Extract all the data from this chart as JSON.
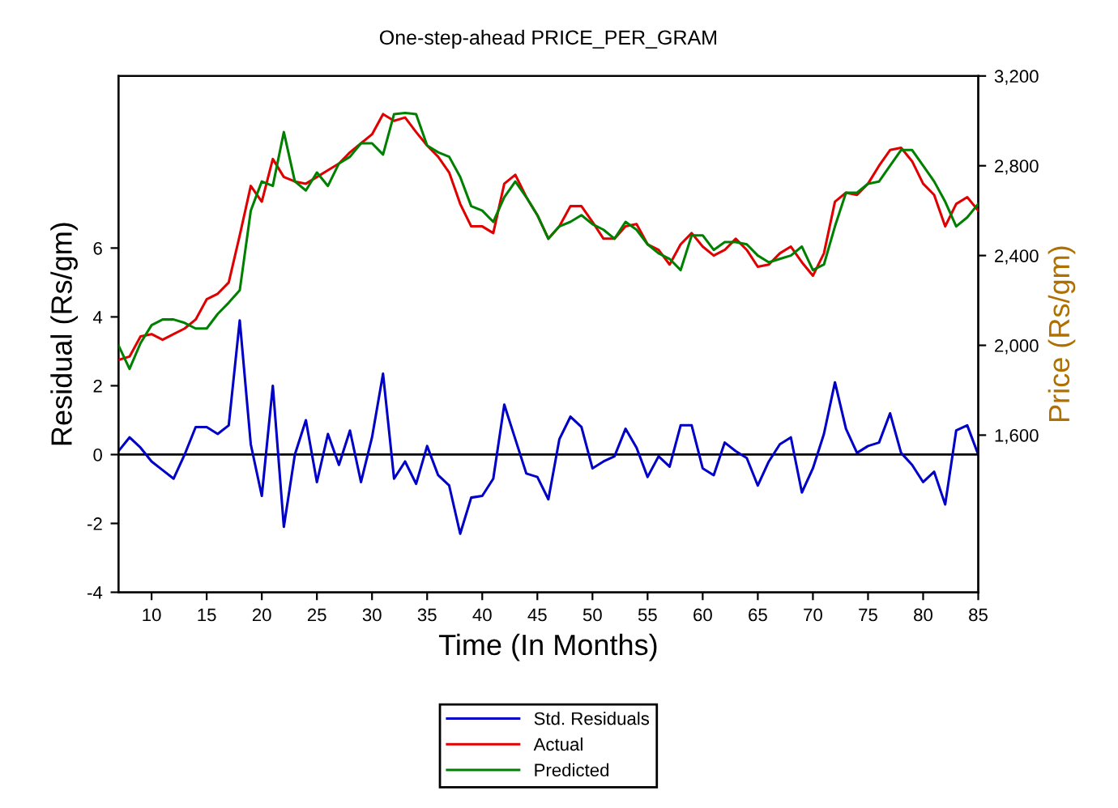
{
  "chart_data": {
    "type": "line",
    "title": "One-step-ahead PRICE_PER_GRAM",
    "xlabel": "Time (In Months)",
    "ylabel": "Residual (Rs/gm)",
    "y2label": "Price (Rs/gm)",
    "x": [
      7,
      8,
      9,
      10,
      11,
      12,
      13,
      14,
      15,
      16,
      17,
      18,
      19,
      20,
      21,
      22,
      23,
      24,
      25,
      26,
      27,
      28,
      29,
      30,
      31,
      32,
      33,
      34,
      35,
      36,
      37,
      38,
      39,
      40,
      41,
      42,
      43,
      44,
      45,
      46,
      47,
      48,
      49,
      50,
      51,
      52,
      53,
      54,
      55,
      56,
      57,
      58,
      59,
      60,
      61,
      62,
      63,
      64,
      65,
      66,
      67,
      68,
      69,
      70,
      71,
      72,
      73,
      74,
      75,
      76,
      77,
      78,
      79,
      80,
      81,
      82,
      83,
      84,
      85
    ],
    "series": [
      {
        "name": "Std. Residuals",
        "color": "#0000c8",
        "values": [
          0.1,
          0.5,
          0.2,
          -0.2,
          -0.45,
          -0.7,
          0.0,
          0.8,
          0.8,
          0.6,
          0.85,
          3.9,
          0.3,
          -1.2,
          2.0,
          -2.1,
          0.0,
          1.0,
          -0.8,
          0.6,
          -0.3,
          0.7,
          -0.8,
          0.5,
          2.35,
          -0.7,
          -0.2,
          -0.85,
          0.25,
          -0.6,
          -0.9,
          -2.3,
          -1.25,
          -1.2,
          -0.7,
          1.45,
          0.45,
          -0.55,
          -0.65,
          -1.3,
          0.45,
          1.1,
          0.8,
          -0.4,
          -0.2,
          -0.05,
          0.75,
          0.2,
          -0.65,
          -0.05,
          -0.35,
          0.85,
          0.85,
          -0.4,
          -0.6,
          0.35,
          0.1,
          -0.1,
          -0.9,
          -0.2,
          0.3,
          0.5,
          -1.1,
          -0.4,
          0.6,
          2.1,
          0.75,
          0.05,
          0.25,
          0.35,
          1.2,
          0.05,
          -0.3,
          -0.8,
          -0.5,
          -1.45,
          0.7,
          0.85,
          0.0
        ]
      },
      {
        "name": "Actual",
        "color": "#e00000",
        "axis": "y2",
        "values": [
          1935,
          1950,
          2040,
          2050,
          2025,
          2050,
          2075,
          2115,
          2205,
          2230,
          2280,
          2490,
          2710,
          2640,
          2830,
          2750,
          2730,
          2720,
          2750,
          2780,
          2810,
          2860,
          2900,
          2940,
          3030,
          3000,
          3015,
          2950,
          2890,
          2840,
          2770,
          2630,
          2530,
          2530,
          2500,
          2720,
          2760,
          2660,
          2580,
          2475,
          2530,
          2620,
          2620,
          2550,
          2475,
          2475,
          2530,
          2540,
          2450,
          2425,
          2360,
          2450,
          2500,
          2440,
          2400,
          2425,
          2475,
          2425,
          2350,
          2360,
          2410,
          2440,
          2370,
          2310,
          2410,
          2640,
          2680,
          2670,
          2720,
          2800,
          2870,
          2880,
          2820,
          2720,
          2670,
          2530,
          2630,
          2660,
          2600
        ]
      },
      {
        "name": "Predicted",
        "color": "#008000",
        "axis": "y2",
        "values": [
          2000,
          1895,
          2010,
          2090,
          2115,
          2115,
          2100,
          2075,
          2075,
          2140,
          2190,
          2245,
          2600,
          2730,
          2710,
          2950,
          2730,
          2690,
          2770,
          2710,
          2810,
          2840,
          2900,
          2900,
          2850,
          3030,
          3035,
          3030,
          2890,
          2860,
          2840,
          2750,
          2620,
          2600,
          2550,
          2660,
          2730,
          2660,
          2580,
          2475,
          2530,
          2550,
          2580,
          2540,
          2515,
          2475,
          2550,
          2515,
          2450,
          2410,
          2385,
          2335,
          2490,
          2490,
          2425,
          2460,
          2460,
          2450,
          2400,
          2370,
          2385,
          2400,
          2440,
          2335,
          2360,
          2530,
          2680,
          2680,
          2720,
          2730,
          2800,
          2870,
          2870,
          2800,
          2730,
          2640,
          2530,
          2570,
          2630
        ]
      }
    ],
    "xlim": [
      7,
      85
    ],
    "xticks": [
      10,
      15,
      20,
      25,
      30,
      35,
      40,
      45,
      50,
      55,
      60,
      65,
      70,
      75,
      80,
      85
    ],
    "ylim": [
      -4,
      11
    ],
    "yticks": [
      -4,
      -2,
      0,
      2,
      4,
      6
    ],
    "y2lim": [
      900,
      3200
    ],
    "y2ticks": [
      {
        "value": 1600,
        "label": "1,600"
      },
      {
        "value": 2000,
        "label": "2,000"
      },
      {
        "value": 2400,
        "label": "2,400"
      },
      {
        "value": 2800,
        "label": "2,800"
      },
      {
        "value": 3200,
        "label": "3,200"
      }
    ],
    "ref_lines": [
      {
        "axis": "y",
        "value": 0,
        "color": "#000000"
      }
    ],
    "grid": false,
    "legend": "bottom"
  }
}
